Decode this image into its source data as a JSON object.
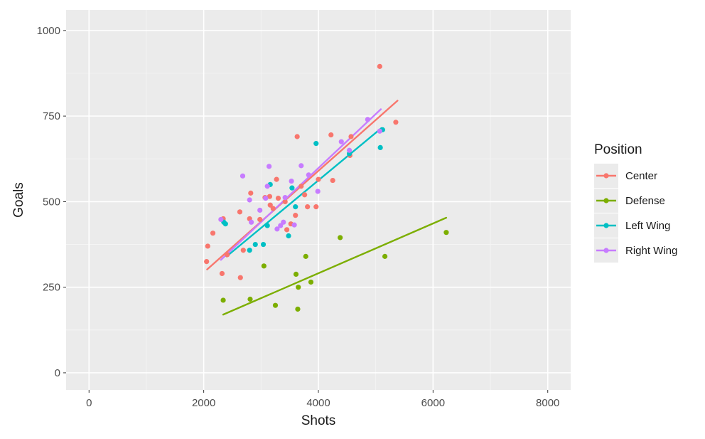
{
  "chart_data": {
    "type": "scatter",
    "xlabel": "Shots",
    "ylabel": "Goals",
    "xlim": [
      -400,
      8400
    ],
    "ylim": [
      -50,
      1060
    ],
    "x_ticks": [
      0,
      2000,
      4000,
      6000,
      8000
    ],
    "y_ticks": [
      0,
      250,
      500,
      750,
      1000
    ],
    "x_tick_labels": [
      "0",
      "2000",
      "4000",
      "6000",
      "8000"
    ],
    "y_tick_labels": [
      "0",
      "250",
      "500",
      "750",
      "1000"
    ],
    "grid": true,
    "legend": {
      "title": "Position",
      "placement": "right"
    },
    "series": [
      {
        "name": "Center",
        "color": "#F8766D",
        "points": [
          [
            2050,
            325
          ],
          [
            2070,
            370
          ],
          [
            2160,
            408
          ],
          [
            2320,
            290
          ],
          [
            2340,
            450
          ],
          [
            2410,
            345
          ],
          [
            2630,
            470
          ],
          [
            2640,
            278
          ],
          [
            2690,
            358
          ],
          [
            2800,
            450
          ],
          [
            2820,
            525
          ],
          [
            2980,
            448
          ],
          [
            3070,
            512
          ],
          [
            3150,
            515
          ],
          [
            3160,
            490
          ],
          [
            3210,
            480
          ],
          [
            3270,
            565
          ],
          [
            3300,
            510
          ],
          [
            3420,
            500
          ],
          [
            3450,
            418
          ],
          [
            3520,
            435
          ],
          [
            3600,
            460
          ],
          [
            3630,
            690
          ],
          [
            3700,
            545
          ],
          [
            3760,
            520
          ],
          [
            3810,
            485
          ],
          [
            3960,
            485
          ],
          [
            4000,
            565
          ],
          [
            4220,
            695
          ],
          [
            4250,
            562
          ],
          [
            4550,
            635
          ],
          [
            4570,
            690
          ],
          [
            5070,
            895
          ],
          [
            5350,
            732
          ]
        ],
        "fit": [
          [
            2060,
            302
          ],
          [
            5380,
            795
          ]
        ]
      },
      {
        "name": "Defense",
        "color": "#7CAE00",
        "points": [
          [
            2340,
            212
          ],
          [
            2810,
            215
          ],
          [
            3050,
            312
          ],
          [
            3250,
            197
          ],
          [
            3610,
            288
          ],
          [
            3640,
            186
          ],
          [
            3650,
            250
          ],
          [
            3780,
            340
          ],
          [
            3870,
            265
          ],
          [
            4380,
            395
          ],
          [
            5160,
            340
          ],
          [
            6230,
            410
          ]
        ],
        "fit": [
          [
            2340,
            170
          ],
          [
            6230,
            453
          ]
        ]
      },
      {
        "name": "Left Wing",
        "color": "#00BFC4",
        "points": [
          [
            2350,
            440
          ],
          [
            2380,
            435
          ],
          [
            2800,
            358
          ],
          [
            2900,
            375
          ],
          [
            3040,
            375
          ],
          [
            3110,
            430
          ],
          [
            3160,
            550
          ],
          [
            3480,
            400
          ],
          [
            3540,
            540
          ],
          [
            3600,
            485
          ],
          [
            3960,
            670
          ],
          [
            4540,
            640
          ],
          [
            5080,
            658
          ],
          [
            5120,
            710
          ]
        ],
        "fit": [
          [
            2400,
            340
          ],
          [
            5100,
            715
          ]
        ]
      },
      {
        "name": "Right Wing",
        "color": "#C77CFF",
        "points": [
          [
            2300,
            448
          ],
          [
            2680,
            575
          ],
          [
            2800,
            505
          ],
          [
            2830,
            440
          ],
          [
            2980,
            475
          ],
          [
            3080,
            510
          ],
          [
            3110,
            545
          ],
          [
            3140,
            603
          ],
          [
            3280,
            420
          ],
          [
            3340,
            430
          ],
          [
            3390,
            440
          ],
          [
            3420,
            512
          ],
          [
            3530,
            560
          ],
          [
            3580,
            432
          ],
          [
            3700,
            605
          ],
          [
            3830,
            578
          ],
          [
            3990,
            530
          ],
          [
            4400,
            675
          ],
          [
            4540,
            650
          ],
          [
            4860,
            740
          ],
          [
            5070,
            706
          ]
        ],
        "fit": [
          [
            2300,
            330
          ],
          [
            5090,
            770
          ]
        ]
      }
    ]
  }
}
